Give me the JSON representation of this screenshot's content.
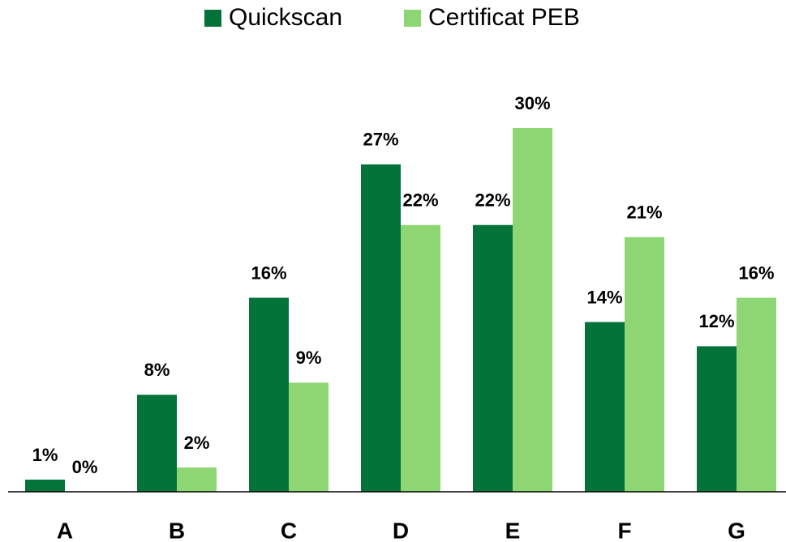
{
  "chart_data": {
    "type": "bar",
    "categories": [
      "A",
      "B",
      "C",
      "D",
      "E",
      "F",
      "G"
    ],
    "series": [
      {
        "name": "Quickscan",
        "color": "#03733a",
        "values": [
          1,
          8,
          16,
          27,
          22,
          14,
          12
        ],
        "value_labels": [
          "1%",
          "8%",
          "16%",
          "27%",
          "22%",
          "14%",
          "12%"
        ]
      },
      {
        "name": "Certificat PEB",
        "color": "#8ed673",
        "values": [
          0,
          2,
          9,
          22,
          30,
          21,
          16
        ],
        "value_labels": [
          "0%",
          "2%",
          "9%",
          "22%",
          "30%",
          "21%",
          "16%"
        ]
      }
    ],
    "legend": "top"
  }
}
